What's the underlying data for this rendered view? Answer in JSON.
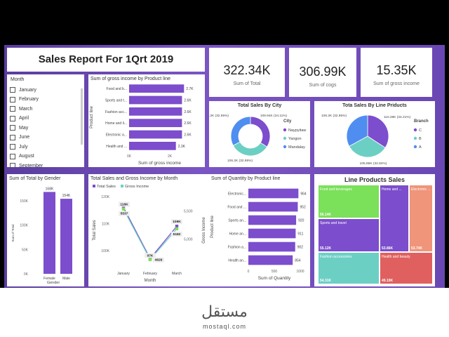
{
  "report": {
    "title": "Sales Report For 1Qrt 2019"
  },
  "kpis": [
    {
      "value": "322.34K",
      "label": "Sum of Total"
    },
    {
      "value": "306.99K",
      "label": "Sum of cogs"
    },
    {
      "value": "15.35K",
      "label": "Sum of gross income"
    }
  ],
  "slicer": {
    "title": "Month",
    "items": [
      "January",
      "February",
      "March",
      "April",
      "May",
      "June",
      "July",
      "August",
      "September"
    ]
  },
  "colors": {
    "purple": "#7c4dcc",
    "teal": "#6ccfc4",
    "blue": "#4f8ef0",
    "green": "#7be05a",
    "salmon": "#f0947a",
    "red": "#e06060",
    "grid": "#e5e5e5"
  },
  "chart_data": [
    {
      "id": "gross_by_product",
      "type": "bar",
      "title": "Sum of gross income by Product line",
      "xlabel": "Sum of gross income",
      "ylabel": "Product line",
      "categories": [
        "Food and b...",
        "Sports and t...",
        "Fashion acc...",
        "Home and li...",
        "Electronic a...",
        "Health and ..."
      ],
      "values": [
        2.7,
        2.6,
        2.6,
        2.6,
        2.6,
        2.3
      ],
      "data_labels": [
        "2.7K",
        "2.6K",
        "2.6K",
        "2.6K",
        "2.6K",
        "2.3K"
      ],
      "xticks": [
        "0K",
        "2K"
      ],
      "xlim": [
        0,
        3
      ]
    },
    {
      "id": "sales_by_city",
      "type": "pie",
      "title": "Total Sales By City",
      "legend_title": "City",
      "categories": [
        "Naypyitaw",
        "Yangon",
        "Mandalay"
      ],
      "values": [
        109.94,
        106.2,
        106.2
      ],
      "data_labels": [
        "109.94K (34.11%)",
        "106.2K (32.95%)",
        "106.2K (32.95%)"
      ]
    },
    {
      "id": "sales_by_line_products",
      "type": "pie",
      "title": "Tota Sales By Line Priducts",
      "legend_title": "Branch",
      "categories": [
        "C",
        "B",
        "A"
      ],
      "values": [
        110.28,
        105.86,
        106.2
      ],
      "data_labels": [
        "110.28K (34.21%)",
        "105.86K (32.84%)",
        "106.2K (32.95%)"
      ]
    },
    {
      "id": "total_by_gender",
      "type": "bar",
      "title": "Sum of Total by Gender",
      "xlabel": "Gender",
      "ylabel": "Sum of Total",
      "categories": [
        "Female",
        "Male"
      ],
      "values": [
        168,
        154
      ],
      "data_labels": [
        "168K",
        "154K"
      ],
      "yticks": [
        "0K",
        "50K",
        "100K",
        "150K"
      ],
      "ylim": [
        0,
        170
      ]
    },
    {
      "id": "sales_gross_by_month",
      "type": "line",
      "title": "Total Sales and Gross Income by Month",
      "xlabel": "Month",
      "ylabel": "Total Sales",
      "y2label": "Gross Income",
      "categories": [
        "January",
        "February",
        "March"
      ],
      "series": [
        {
          "name": "Total Sales",
          "values": [
            116,
            97,
            109
          ],
          "data_labels": [
            "116K",
            "97K",
            "109K"
          ]
        },
        {
          "name": "Gross Income",
          "values": [
            5537,
            4629,
            5182
          ],
          "data_labels": [
            "5537",
            "4629",
            "5182"
          ]
        }
      ],
      "yticks": [
        "100K",
        "110K",
        "120K"
      ],
      "ylim": [
        95,
        120
      ],
      "y2ticks": [
        "5,000",
        "5,500"
      ],
      "y2lim": [
        4550,
        5760
      ]
    },
    {
      "id": "qty_by_product",
      "type": "bar",
      "title": "Sum of Quantity by Product line",
      "xlabel": "Sum of Quantity",
      "ylabel": "Product line",
      "categories": [
        "Electronic...",
        "Food and ...",
        "Sports an...",
        "Home an...",
        "Fashion a...",
        "Health an..."
      ],
      "values": [
        964,
        952,
        920,
        911,
        902,
        854
      ],
      "data_labels": [
        "964",
        "952",
        "920",
        "911",
        "902",
        "854"
      ],
      "xticks": [
        "0",
        "500",
        "1000"
      ],
      "xlim": [
        0,
        1000
      ]
    },
    {
      "id": "line_products_sales",
      "type": "treemap",
      "title": "Line Products Sales",
      "categories": [
        "Food and beverages",
        "Sports and travel",
        "Fashion accessories",
        "Home and ...",
        "Electronic ...",
        "Health and beauty"
      ],
      "values": [
        56.14,
        55.12,
        54.31,
        53.86,
        53.74,
        49.19
      ],
      "data_labels": [
        "56.14K",
        "55.12K",
        "54.31K",
        "53.86K",
        "53.74K",
        "49.19K"
      ]
    }
  ]
}
